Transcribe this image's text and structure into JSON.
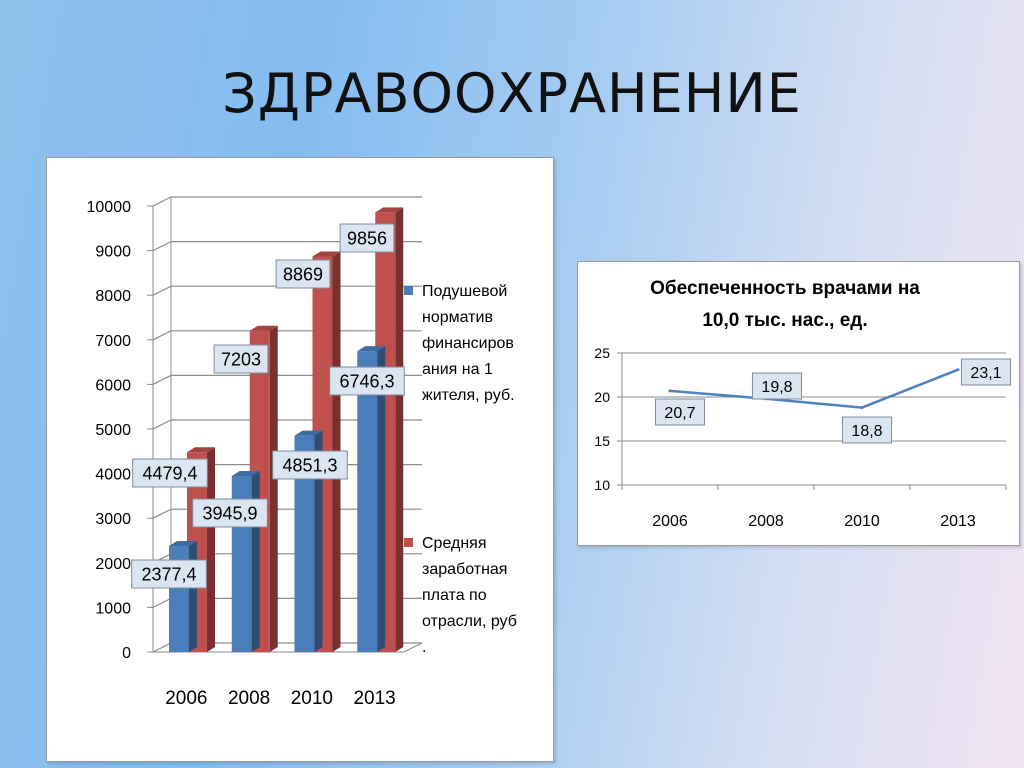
{
  "slide": {
    "title": "ЗДРАВООХРАНЕНИЕ"
  },
  "colors": {
    "series1": "#4a7ebb",
    "series2": "#c0504d",
    "line": "#4f81bd",
    "label_fill": "#dbe5f1",
    "label_border": "#7f8c99"
  },
  "chart_data": [
    {
      "type": "bar",
      "categories": [
        "2006",
        "2008",
        "2010",
        "2013"
      ],
      "series": [
        {
          "name": "Подушевой норматив финансирования на 1 жителя, руб.",
          "values": [
            2377.4,
            3945.9,
            4851.3,
            6746.3
          ],
          "labels": [
            "2377,4",
            "3945,9",
            "4851,3",
            "6746,3"
          ]
        },
        {
          "name": "Средняя заработная плата по отрасли, руб.",
          "values": [
            4479.4,
            7203,
            8869,
            9856
          ],
          "labels": [
            "4479,4",
            "7203",
            "8869",
            "9856"
          ]
        }
      ],
      "legend_lines": [
        [
          "Подушевой",
          "норматив",
          "финансиров",
          "ания на 1",
          "жителя, руб."
        ],
        [
          "Средняя",
          "заработная",
          "плата по",
          "отрасли, руб",
          "."
        ]
      ],
      "ylim": [
        0,
        10000
      ],
      "yticks": [
        "0",
        "1000",
        "2000",
        "3000",
        "4000",
        "5000",
        "6000",
        "7000",
        "8000",
        "9000",
        "10000"
      ],
      "grid": true,
      "legend": "right",
      "title": "",
      "xlabel": "",
      "ylabel": ""
    },
    {
      "type": "line",
      "title_lines": [
        "Обеспеченность врачами на",
        "10,0 тыс. нас., ед."
      ],
      "categories": [
        "2006",
        "2008",
        "2010",
        "2013"
      ],
      "series": [
        {
          "values": [
            20.7,
            19.8,
            18.8,
            23.1
          ],
          "labels": [
            "20,7",
            "19,8",
            "18,8",
            "23,1"
          ]
        }
      ],
      "ylim": [
        10,
        25
      ],
      "yticks": [
        "10",
        "15",
        "20",
        "25"
      ],
      "grid": true,
      "legend": "none",
      "xlabel": "",
      "ylabel": ""
    }
  ]
}
